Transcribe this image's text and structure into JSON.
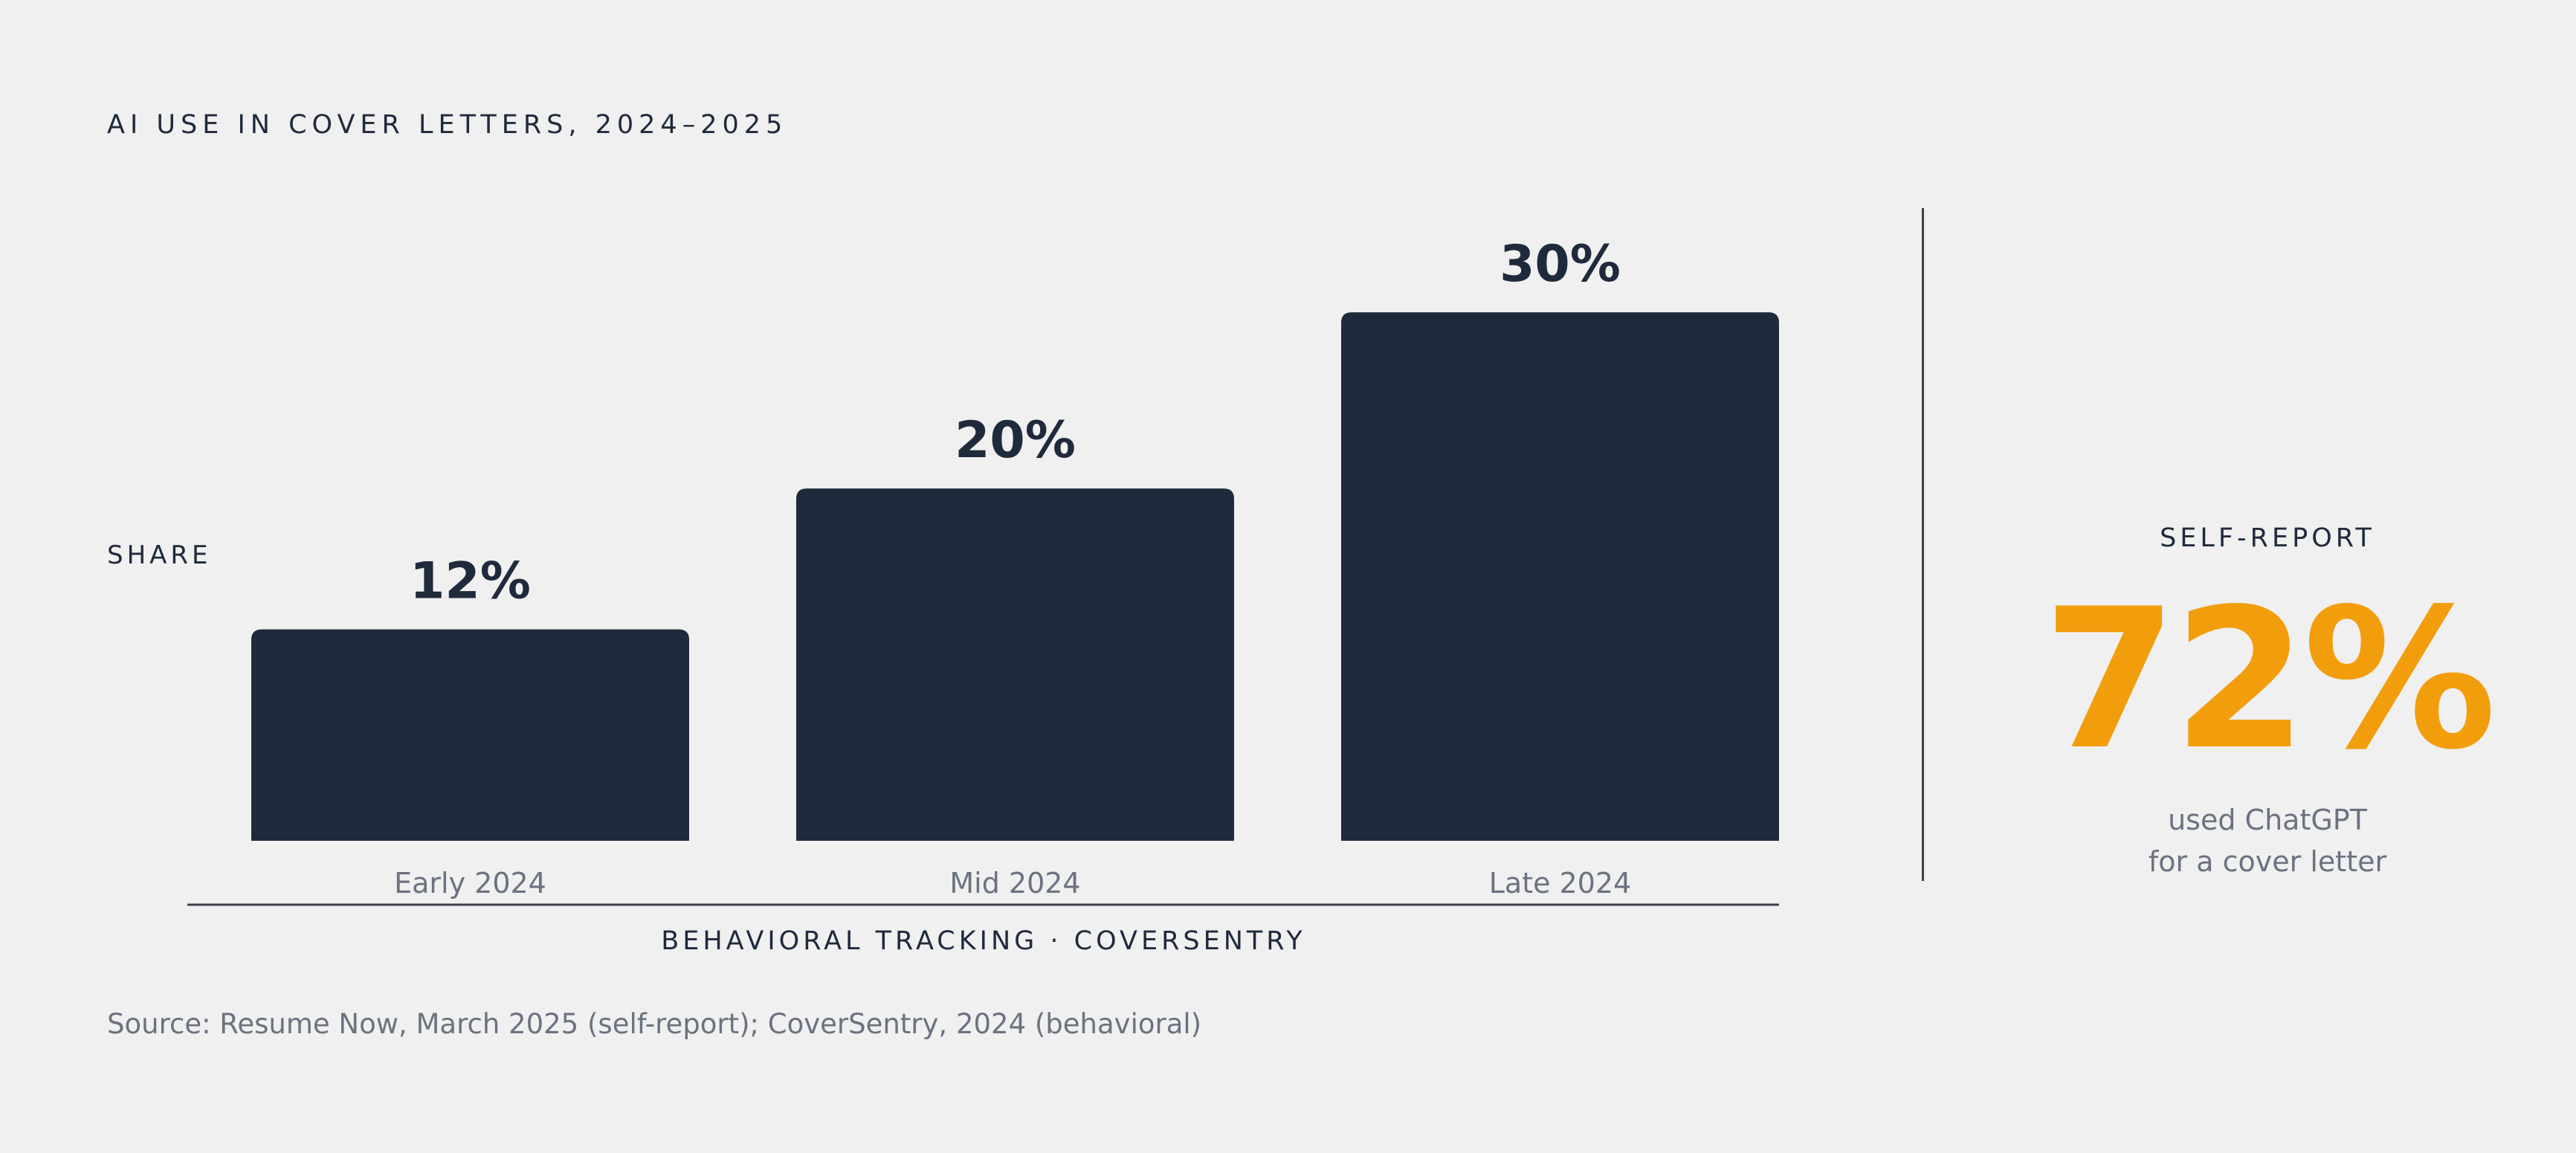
{
  "chart_data": {
    "type": "bar",
    "title": "AI USE IN COVER LETTERS, 2024–2025",
    "ylabel": "SHARE",
    "xlabel": "BEHAVIORAL TRACKING · COVERSENTRY",
    "categories": [
      "Early 2024",
      "Mid 2024",
      "Late 2024"
    ],
    "values": [
      12,
      20,
      30
    ],
    "data_labels": [
      "12%",
      "20%",
      "30%"
    ],
    "ylim": [
      0,
      36
    ],
    "grid": false,
    "bar_color": "#1f2a3c"
  },
  "callout": {
    "label": "SELF-REPORT",
    "value": "72%",
    "desc_line1": "used ChatGPT",
    "desc_line2": "for a cover letter",
    "color": "#f29e0c"
  },
  "source": "Source: Resume Now, March 2025 (self-report); CoverSentry, 2024 (behavioral)"
}
